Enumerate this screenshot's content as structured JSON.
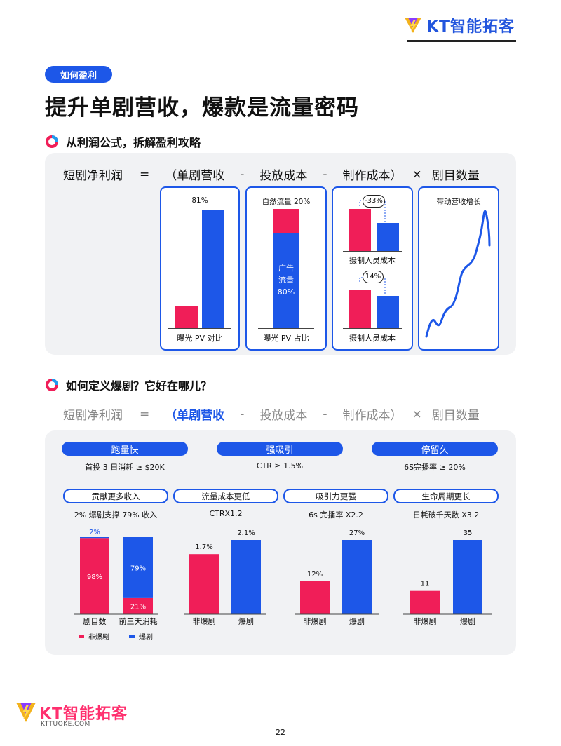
{
  "header": {
    "brand": "KT智能拓客"
  },
  "tag": "如何盈利",
  "title": "提升单剧营收，爆款是流量密码",
  "section1": {
    "heading": "从利润公式，拆解盈利攻略",
    "formula": {
      "net": "短剧净利润",
      "eq": "=",
      "rev": "（单剧营收",
      "minus1": "-",
      "ad": "投放成本",
      "minus2": "-",
      "prod": "制作成本）",
      "times": "×",
      "count": "剧目数量"
    },
    "card1": {
      "top_label": "81%",
      "caption": "曝光 PV 对比"
    },
    "card2": {
      "top_label": "自然流量 20%",
      "inner1": "广告",
      "inner2": "流量",
      "inner3": "80%",
      "caption": "曝光 PV 占比"
    },
    "card3": {
      "delta_top": "-33%",
      "caption_top": "摄制人员成本",
      "delta_bottom": "14%",
      "caption_bottom": "摄制人员成本"
    },
    "card4": {
      "title": "带动营收增长"
    }
  },
  "section2": {
    "heading": "如何定义爆剧？它好在哪儿？",
    "formula": {
      "net": "短剧净利润",
      "eq": "=",
      "rev": "（单剧营收",
      "minus1": "-",
      "ad": "投放成本",
      "minus2": "-",
      "prod": "制作成本）",
      "times": "×",
      "count": "剧目数量"
    },
    "criteria": [
      {
        "label": "跑量快",
        "desc": "首投 3 日消耗 ≥ $20K"
      },
      {
        "label": "强吸引",
        "desc": "CTR ≥ 1.5%"
      },
      {
        "label": "停留久",
        "desc": "6S完播率 ≥ 20%"
      }
    ],
    "benefits": [
      {
        "label": "贡献更多收入",
        "desc": "2% 爆剧支撑 79% 收入"
      },
      {
        "label": "流量成本更低",
        "desc": "CTRX1.2"
      },
      {
        "label": "吸引力更强",
        "desc": "6s 完播率 X2.2"
      },
      {
        "label": "生命周期更长",
        "desc": "日耗破千天数 X3.2"
      }
    ],
    "legend": {
      "non_hit": "非爆剧",
      "hit": "爆剧"
    }
  },
  "chart_data": [
    {
      "type": "bar",
      "stacked": true,
      "categories": [
        "剧目数",
        "前三天消耗"
      ],
      "series": [
        {
          "name": "非爆剧",
          "values": [
            98,
            21
          ],
          "labels": [
            "98%",
            "21%"
          ]
        },
        {
          "name": "爆剧",
          "values": [
            2,
            79
          ],
          "labels": [
            "2%",
            "79%"
          ]
        }
      ],
      "colors": [
        "#f01e58",
        "#1d57e8"
      ],
      "legend": "bottom"
    },
    {
      "type": "bar",
      "categories": [
        "非爆剧",
        "爆剧"
      ],
      "values": [
        1.7,
        2.1
      ],
      "labels": [
        "1.7%",
        "2.1%"
      ],
      "colors": [
        "#f01e58",
        "#1d57e8"
      ]
    },
    {
      "type": "bar",
      "categories": [
        "非爆剧",
        "爆剧"
      ],
      "values": [
        12,
        27
      ],
      "labels": [
        "12%",
        "27%"
      ],
      "colors": [
        "#f01e58",
        "#1d57e8"
      ]
    },
    {
      "type": "bar",
      "categories": [
        "非爆剧",
        "爆剧"
      ],
      "values": [
        11,
        35
      ],
      "labels": [
        "11",
        "35"
      ],
      "colors": [
        "#f01e58",
        "#1d57e8"
      ]
    }
  ],
  "footer": {
    "brand": "KT智能拓客",
    "url": "KTTUOKE.COM",
    "page": "22"
  }
}
